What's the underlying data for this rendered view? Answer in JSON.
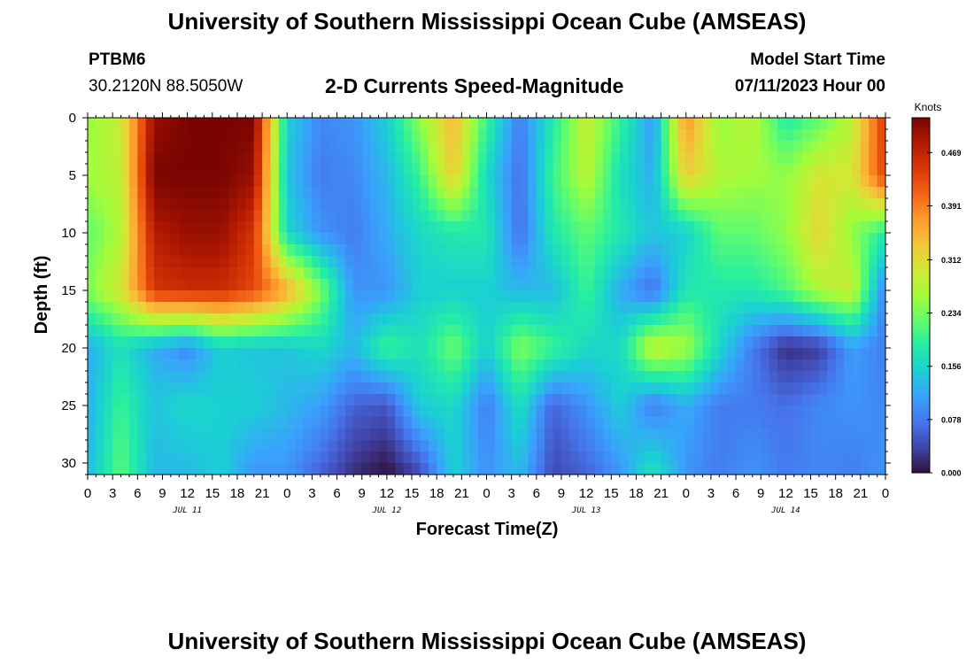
{
  "header": {
    "title": "University of Southern Mississippi Ocean Cube (AMSEAS)",
    "station": "PTBM6",
    "coords": "30.2120N  88.5050W",
    "chart_title": "2-D Currents Speed-Magnitude",
    "model_start_label": "Model Start Time",
    "model_start_value": "07/11/2023 Hour 00"
  },
  "footer": {
    "title": "University of Southern Mississippi Ocean Cube (AMSEAS)"
  },
  "chart_data": {
    "type": "heatmap",
    "title": "2-D Currents Speed-Magnitude",
    "xlabel": "Forecast Time(Z)",
    "ylabel": "Depth (ft)",
    "x_tick_labels": [
      "0",
      "3",
      "6",
      "9",
      "12",
      "15",
      "18",
      "21",
      "0",
      "3",
      "6",
      "9",
      "12",
      "15",
      "18",
      "21",
      "0",
      "3",
      "6",
      "9",
      "12",
      "15",
      "18",
      "21",
      "0",
      "3",
      "6",
      "9",
      "12",
      "15",
      "18",
      "21",
      "0"
    ],
    "date_labels": [
      {
        "label": "JUL 11",
        "hour": 12
      },
      {
        "label": "JUL 12",
        "hour": 36
      },
      {
        "label": "JUL 13",
        "hour": 60
      },
      {
        "label": "JUL 14",
        "hour": 84
      }
    ],
    "x_range_hours": [
      0,
      96
    ],
    "y_ticks": [
      0,
      5,
      10,
      15,
      20,
      25,
      30
    ],
    "y_range_ft": [
      0,
      31
    ],
    "colorbar": {
      "unit": "Knots",
      "ticks": [
        "0.000",
        "0.078",
        "0.156",
        "0.234",
        "0.312",
        "0.391",
        "0.469"
      ],
      "range": [
        0,
        0.52
      ]
    },
    "colormap": [
      "#30123b",
      "#4145ab",
      "#4675ed",
      "#39a2fc",
      "#1bcfd4",
      "#24eca6",
      "#61fc6c",
      "#a4fc3b",
      "#d1e834",
      "#f3c63a",
      "#fe9b2d",
      "#f36315",
      "#d93806",
      "#b11901",
      "#7a0402"
    ],
    "grid_hours": [
      0,
      4,
      8,
      12,
      16,
      20,
      24,
      28,
      32,
      36,
      40,
      44,
      48,
      52,
      56,
      60,
      64,
      68,
      72,
      76,
      80,
      84,
      88,
      92,
      96
    ],
    "grid_depths": [
      0,
      5,
      10,
      15,
      20,
      25,
      31
    ],
    "speed_grid_knots": [
      [
        0.25,
        0.29,
        0.5,
        0.52,
        0.52,
        0.52,
        0.15,
        0.09,
        0.1,
        0.15,
        0.25,
        0.35,
        0.2,
        0.08,
        0.18,
        0.29,
        0.2,
        0.1,
        0.38,
        0.25,
        0.28,
        0.18,
        0.22,
        0.28,
        0.45
      ],
      [
        0.26,
        0.28,
        0.52,
        0.52,
        0.52,
        0.5,
        0.14,
        0.08,
        0.09,
        0.13,
        0.2,
        0.33,
        0.16,
        0.07,
        0.2,
        0.28,
        0.17,
        0.12,
        0.33,
        0.27,
        0.26,
        0.25,
        0.3,
        0.3,
        0.44
      ],
      [
        0.22,
        0.27,
        0.48,
        0.5,
        0.5,
        0.45,
        0.16,
        0.1,
        0.08,
        0.12,
        0.16,
        0.18,
        0.18,
        0.07,
        0.18,
        0.22,
        0.18,
        0.14,
        0.15,
        0.22,
        0.22,
        0.25,
        0.32,
        0.25,
        0.18
      ],
      [
        0.24,
        0.3,
        0.45,
        0.46,
        0.46,
        0.43,
        0.36,
        0.24,
        0.1,
        0.1,
        0.15,
        0.15,
        0.15,
        0.13,
        0.13,
        0.2,
        0.12,
        0.07,
        0.18,
        0.18,
        0.18,
        0.21,
        0.27,
        0.29,
        0.08
      ],
      [
        0.12,
        0.17,
        0.12,
        0.09,
        0.15,
        0.14,
        0.14,
        0.16,
        0.13,
        0.2,
        0.17,
        0.23,
        0.15,
        0.24,
        0.2,
        0.16,
        0.16,
        0.29,
        0.26,
        0.16,
        0.08,
        0.02,
        0.03,
        0.11,
        0.08
      ],
      [
        0.12,
        0.2,
        0.14,
        0.16,
        0.15,
        0.15,
        0.13,
        0.11,
        0.06,
        0.05,
        0.15,
        0.16,
        0.08,
        0.17,
        0.06,
        0.1,
        0.15,
        0.08,
        0.12,
        0.08,
        0.08,
        0.07,
        0.09,
        0.1,
        0.09
      ],
      [
        0.13,
        0.22,
        0.13,
        0.13,
        0.15,
        0.1,
        0.1,
        0.06,
        0.02,
        0.0,
        0.04,
        0.15,
        0.1,
        0.13,
        0.04,
        0.06,
        0.1,
        0.18,
        0.1,
        0.08,
        0.1,
        0.08,
        0.09,
        0.08,
        0.1
      ]
    ]
  }
}
